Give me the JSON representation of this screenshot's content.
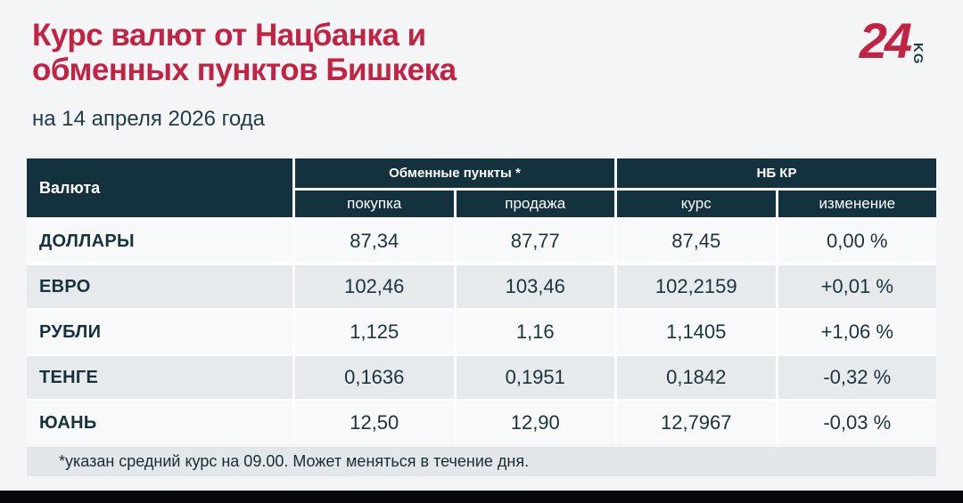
{
  "header": {
    "title_lines": [
      "Курс валют от Нацбанка и",
      "обменных пунктов Бишкека"
    ],
    "subtitle_date": "на 14 апреля 2026 года",
    "logo": {
      "number": "24",
      "country": "KG"
    },
    "accent_color": "#c32342",
    "dark_color": "#13323d"
  },
  "table": {
    "col_currency": "Валюта",
    "group_exchange": "Обменные пункты *",
    "group_nbkr": "НБ КР",
    "sub_buy": "покупка",
    "sub_sell": "продажа",
    "sub_rate": "курс",
    "sub_change": "изменение",
    "rows": [
      {
        "currency": "ДОЛЛАРЫ",
        "buy": "87,34",
        "sell": "87,77",
        "rate": "87,45",
        "change": "0,00 %"
      },
      {
        "currency": "ЕВРО",
        "buy": "102,46",
        "sell": "103,46",
        "rate": "102,2159",
        "change": "+0,01 %"
      },
      {
        "currency": "РУБЛИ",
        "buy": "1,125",
        "sell": "1,16",
        "rate": "1,1405",
        "change": "+1,06 %"
      },
      {
        "currency": "ТЕНГЕ",
        "buy": "0,1636",
        "sell": "0,1951",
        "rate": "0,1842",
        "change": "-0,32 %"
      },
      {
        "currency": "ЮАНЬ",
        "buy": "12,50",
        "sell": "12,90",
        "rate": "12,7967",
        "change": "-0,03 %"
      }
    ],
    "footnote": "*указан средний курс на 09.00. Может меняться в течение дня."
  },
  "chart_data": {
    "type": "table",
    "title": "Курс валют от Нацбанка и обменных пунктов Бишкека",
    "subtitle": "на 14 апреля 2026 года",
    "column_groups": [
      "Обменные пункты *",
      "НБ КР"
    ],
    "columns": [
      "Валюта",
      "покупка",
      "продажа",
      "курс",
      "изменение"
    ],
    "rows": [
      [
        "ДОЛЛАРЫ",
        "87,34",
        "87,77",
        "87,45",
        "0,00 %"
      ],
      [
        "ЕВРО",
        "102,46",
        "103,46",
        "102,2159",
        "+0,01 %"
      ],
      [
        "РУБЛИ",
        "1,125",
        "1,16",
        "1,1405",
        "+1,06 %"
      ],
      [
        "ТЕНГЕ",
        "0,1636",
        "0,1951",
        "0,1842",
        "-0,32 %"
      ],
      [
        "ЮАНЬ",
        "12,50",
        "12,90",
        "12,7967",
        "-0,03 %"
      ]
    ],
    "footnote": "*указан средний курс на 09.00. Может меняться в течение дня."
  }
}
